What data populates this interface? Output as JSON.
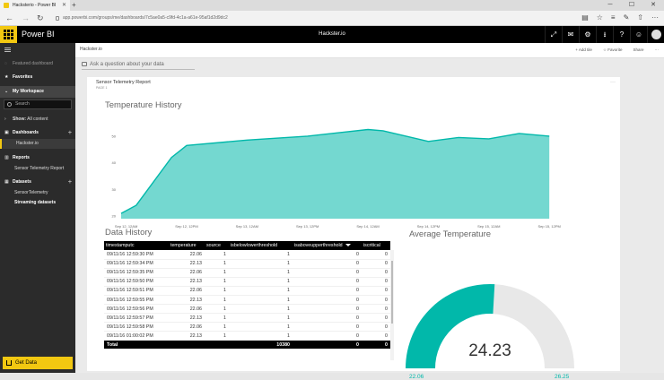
{
  "browser": {
    "tab_title": "Hacksterio - Power BI",
    "address": "app.powerbi.com/groups/me/dashboards/7c5ae0a5-c9fd-4c1a-a61e-95af1d2d9dc2"
  },
  "app": {
    "brand": "Power BI",
    "dashboard_title": "Hackster.io"
  },
  "sidebar": {
    "featured": "Featured dashboard",
    "favorites": "Favorites",
    "my_workspace": "My Workspace",
    "search_placeholder": "Search",
    "show_label": "Show:",
    "show_value": "All content",
    "dashboards": "Dashboards",
    "dashboard_item": "Hackster.io",
    "reports": "Reports",
    "report_item": "Sensor Telemetry Report",
    "datasets": "Datasets",
    "dataset_items": [
      "SensorTelemetry",
      "Streaming datasets"
    ],
    "get_data": "Get Data"
  },
  "header": {
    "breadcrumb": "Hackster.io",
    "actions": [
      "+ Add tile",
      "☆ Favorite",
      "Share",
      "···"
    ]
  },
  "qa": {
    "placeholder": "Ask a question about your data"
  },
  "tile": {
    "title": "Sensor Telemetry Report",
    "subtitle": "PAGE 1",
    "more": "···"
  },
  "chart_data": {
    "type": "area",
    "title": "Temperature History",
    "xlabel": "",
    "ylabel": "",
    "x_ticks": [
      "Sep 12, 12AM",
      "Sep 12, 12PM",
      "Sep 13, 12AM",
      "Sep 13, 12PM",
      "Sep 14, 12AM",
      "Sep 14, 12PM",
      "Sep 15, 12AM",
      "Sep 15, 12PM"
    ],
    "y_ticks": [
      20,
      30,
      40,
      50
    ],
    "ylim": [
      19,
      54
    ],
    "grid": false,
    "color": "#01b8aa",
    "series": [
      {
        "x": [
          "Sep 11, 11PM",
          "Sep 12, 2AM",
          "Sep 12, 9AM",
          "Sep 12, 12PM",
          "Sep 13, 12AM",
          "Sep 13, 12PM",
          "Sep 14, 12AM",
          "Sep 14, 3AM",
          "Sep 14, 12PM",
          "Sep 14, 6PM",
          "Sep 15, 12AM",
          "Sep 15, 6AM",
          "Sep 15, 12PM"
        ],
        "values": [
          21,
          24,
          42,
          46.5,
          48.5,
          50,
          52.5,
          52,
          48,
          49.5,
          49,
          51,
          50
        ]
      }
    ]
  },
  "data_history": {
    "title": "Data History",
    "columns": [
      "timestamputc",
      "temperature",
      "source",
      "isbelowlowerthreshold",
      "isaboveupperthreshold",
      "iscritical"
    ],
    "rows": [
      [
        "09/11/16 12:59:30 PM",
        "22.06",
        "1",
        "1",
        "0",
        "0"
      ],
      [
        "09/11/16 12:59:34 PM",
        "22.13",
        "1",
        "1",
        "0",
        "0"
      ],
      [
        "09/11/16 12:59:35 PM",
        "22.06",
        "1",
        "1",
        "0",
        "0"
      ],
      [
        "09/11/16 12:59:50 PM",
        "22.13",
        "1",
        "1",
        "0",
        "0"
      ],
      [
        "09/11/16 12:59:51 PM",
        "22.06",
        "1",
        "1",
        "0",
        "0"
      ],
      [
        "09/11/16 12:59:55 PM",
        "22.13",
        "1",
        "1",
        "0",
        "0"
      ],
      [
        "09/11/16 12:59:56 PM",
        "22.06",
        "1",
        "1",
        "0",
        "0"
      ],
      [
        "09/11/16 12:59:57 PM",
        "22.13",
        "1",
        "1",
        "0",
        "0"
      ],
      [
        "09/11/16 12:59:58 PM",
        "22.06",
        "1",
        "1",
        "0",
        "0"
      ],
      [
        "09/11/16 01:00:02 PM",
        "22.13",
        "1",
        "1",
        "0",
        "0"
      ]
    ],
    "total": [
      "Total",
      "",
      "",
      "10380",
      "0",
      "0"
    ]
  },
  "average_temperature": {
    "title": "Average Temperature",
    "value": "24.23",
    "min": "22.06",
    "max": "26.25",
    "value_num": 24.23,
    "min_num": 22.06,
    "max_num": 26.25,
    "fill_color": "#01b8aa",
    "track_color": "#e8e8e8"
  }
}
